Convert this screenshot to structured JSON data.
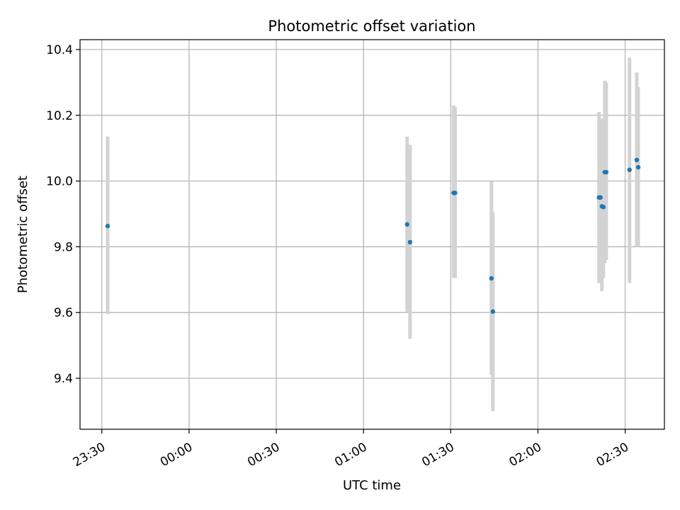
{
  "chart_data": {
    "type": "scatter",
    "title": "Photometric offset variation",
    "xlabel": "UTC time",
    "ylabel": "Photometric offset",
    "grid": true,
    "colors": {
      "point": "#1f77b4",
      "errorbar": "#d3d3d3",
      "grid": "#b0b0b0",
      "axis": "#000000"
    },
    "x_ticks": [
      "23:30",
      "00:00",
      "00:30",
      "01:00",
      "01:30",
      "02:00",
      "02:30"
    ],
    "y_ticks": [
      "9.4",
      "9.6",
      "9.8",
      "10.0",
      "10.2",
      "10.4"
    ],
    "xlim": [
      "23:22.5",
      "02:43.5"
    ],
    "ylim": [
      9.245,
      10.43
    ],
    "points": [
      {
        "x": "23:32",
        "y": 9.863,
        "ylow": 9.595,
        "yhigh": 10.135
      },
      {
        "x": "01:15",
        "y": 9.868,
        "ylow": 9.6,
        "yhigh": 10.135
      },
      {
        "x": "01:16",
        "y": 9.814,
        "ylow": 9.52,
        "yhigh": 10.11
      },
      {
        "x": "01:31",
        "y": 9.964,
        "ylow": 9.705,
        "yhigh": 10.23
      },
      {
        "x": "01:31.5",
        "y": 9.964,
        "ylow": 9.705,
        "yhigh": 10.225
      },
      {
        "x": "01:44",
        "y": 9.704,
        "ylow": 9.41,
        "yhigh": 10.0
      },
      {
        "x": "01:44.5",
        "y": 9.603,
        "ylow": 9.3,
        "yhigh": 9.905
      },
      {
        "x": "02:21",
        "y": 9.95,
        "ylow": 9.69,
        "yhigh": 10.21
      },
      {
        "x": "02:21.5",
        "y": 9.95,
        "ylow": 9.7,
        "yhigh": 10.19
      },
      {
        "x": "02:22",
        "y": 9.923,
        "ylow": 9.665,
        "yhigh": 10.185
      },
      {
        "x": "02:22.5",
        "y": 9.921,
        "ylow": 9.705,
        "yhigh": 10.19
      },
      {
        "x": "02:23",
        "y": 10.027,
        "ylow": 9.75,
        "yhigh": 10.305
      },
      {
        "x": "02:23.5",
        "y": 10.027,
        "ylow": 9.76,
        "yhigh": 10.3
      },
      {
        "x": "02:31.5",
        "y": 10.034,
        "ylow": 9.69,
        "yhigh": 10.375
      },
      {
        "x": "02:34",
        "y": 10.064,
        "ylow": 9.8,
        "yhigh": 10.33
      },
      {
        "x": "02:34.5",
        "y": 10.042,
        "ylow": 9.8,
        "yhigh": 10.285
      }
    ]
  }
}
